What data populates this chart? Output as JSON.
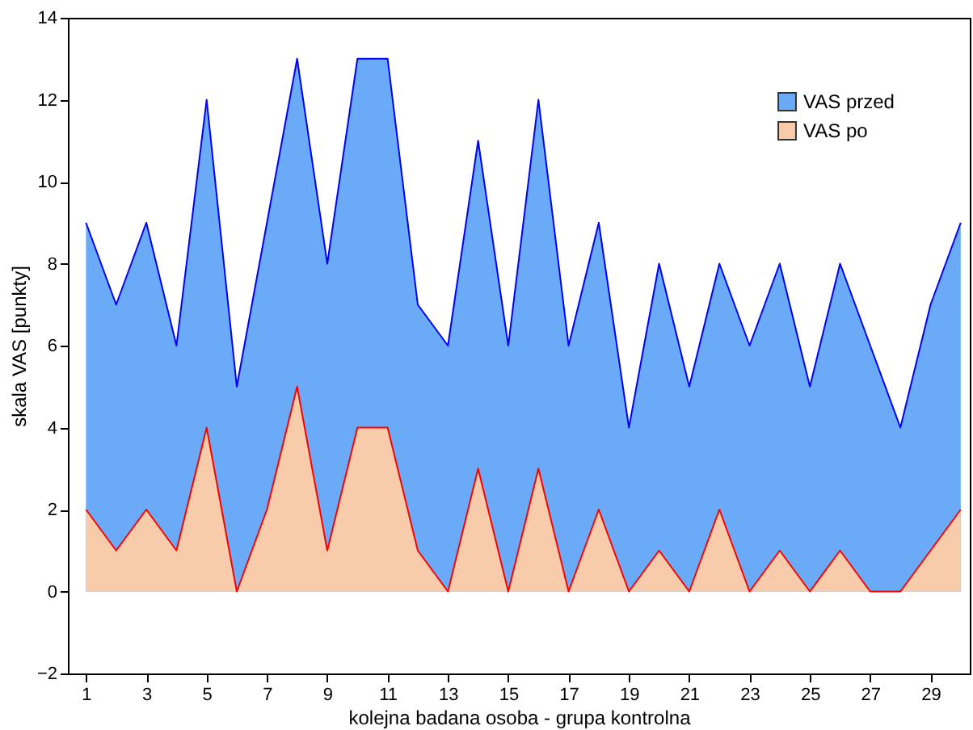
{
  "chart_data": {
    "type": "area",
    "xlabel": "kolejna badana osoba - grupa kontrolna",
    "ylabel": "skala VAS [punkty]",
    "x": [
      1,
      2,
      3,
      4,
      5,
      6,
      7,
      8,
      9,
      10,
      11,
      12,
      13,
      14,
      15,
      16,
      17,
      18,
      19,
      20,
      21,
      22,
      23,
      24,
      25,
      26,
      27,
      28,
      29,
      30
    ],
    "series": [
      {
        "name": "VAS przed",
        "color": "#6aaaf7",
        "values": [
          9,
          7,
          9,
          6,
          12,
          5,
          9,
          13,
          8,
          13,
          13,
          7,
          6,
          11,
          6,
          12,
          6,
          9,
          4,
          8,
          5,
          8,
          6,
          8,
          5,
          8,
          6,
          4,
          7,
          9
        ]
      },
      {
        "name": "VAS po",
        "color": "#f8cbab",
        "values": [
          2,
          1,
          2,
          1,
          4,
          0,
          2,
          5,
          1,
          4,
          4,
          1,
          0,
          3,
          0,
          3,
          0,
          2,
          0,
          1,
          0,
          2,
          0,
          1,
          0,
          1,
          0,
          0,
          1,
          2
        ]
      }
    ],
    "xlim": [
      0.4,
      30.3
    ],
    "xticks": [
      1,
      3,
      5,
      7,
      9,
      11,
      13,
      15,
      17,
      19,
      21,
      23,
      25,
      27,
      29
    ],
    "ylim": [
      -2,
      14
    ],
    "yticks": [
      -2,
      0,
      2,
      4,
      6,
      8,
      10,
      12,
      14
    ],
    "grid": false,
    "legend": "top right"
  }
}
